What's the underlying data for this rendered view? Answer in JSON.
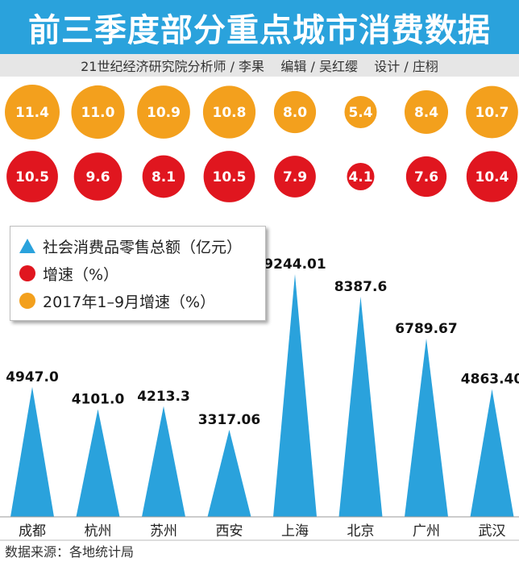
{
  "header": {
    "title": "前三季度部分重点城市消费数据",
    "credits": "21世纪经济研究院分析师 / 李果    编辑 / 吴红缨    设计 / 庄栩"
  },
  "legend": {
    "items": [
      {
        "label": "社会消费品零售总额（亿元）",
        "marker": "triangle",
        "color": "#2aa2dc"
      },
      {
        "label": "增速（%）",
        "marker": "circle",
        "color": "#e0161f"
      },
      {
        "label": "2017年1–9月增速（%）",
        "marker": "circle",
        "color": "#f3a01d"
      }
    ]
  },
  "source": "数据来源：各地统计局",
  "colors": {
    "title_bg": "#2aa2dc",
    "triangle": "#2aa2dc",
    "growth_2018": "#e0161f",
    "growth_2017": "#f3a01d",
    "axis": "#999999"
  },
  "chart_data": {
    "type": "bar",
    "categories": [
      "成都",
      "杭州",
      "苏州",
      "西安",
      "上海",
      "北京",
      "广州",
      "武汉"
    ],
    "series": [
      {
        "name": "社会消费品零售总额（亿元）",
        "labels": [
          "4947.0",
          "4101.0",
          "4213.3",
          "3317.06",
          "9244.01",
          "8387.6",
          "6789.67",
          "4863.40"
        ],
        "values": [
          4947.0,
          4101.0,
          4213.3,
          3317.06,
          9244.01,
          8387.6,
          6789.67,
          4863.4
        ]
      },
      {
        "name": "增速（%）",
        "labels": [
          "10.5",
          "9.6",
          "8.1",
          "10.5",
          "7.9",
          "4.1",
          "7.6",
          "10.4"
        ],
        "values": [
          10.5,
          9.6,
          8.1,
          10.5,
          7.9,
          4.1,
          7.6,
          10.4
        ]
      },
      {
        "name": "2017年1–9月增速（%）",
        "labels": [
          "11.4",
          "11.0",
          "10.9",
          "10.8",
          "8.0",
          "5.4",
          "8.4",
          "10.7"
        ],
        "values": [
          11.4,
          11.0,
          10.9,
          10.8,
          8.0,
          5.4,
          8.4,
          10.7
        ]
      }
    ],
    "ylim": [
      0,
      9244.01
    ]
  }
}
